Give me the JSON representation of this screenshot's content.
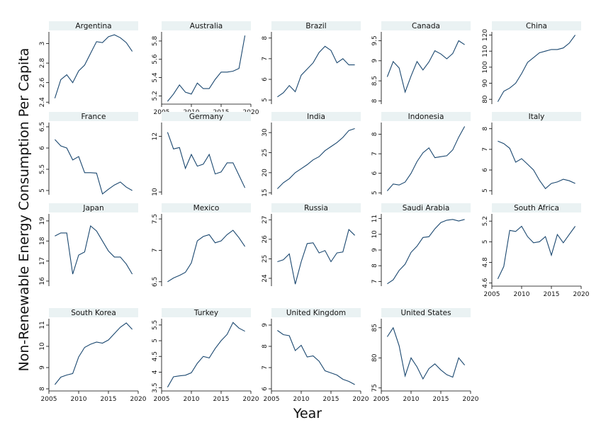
{
  "chart_data": {
    "type": "line",
    "xlabel": "Year",
    "ylabel": "Non-Renewable Energy Consumption Per Capita",
    "x": [
      2006,
      2007,
      2008,
      2009,
      2010,
      2011,
      2012,
      2013,
      2014,
      2015,
      2016,
      2017,
      2018,
      2019
    ],
    "x_ticks": [
      2005,
      2010,
      2015,
      2020
    ],
    "panels": [
      {
        "name": "Argentina",
        "yticks": [
          2.4,
          2.6,
          2.8,
          3
        ],
        "ytick_labels": [
          "2.4",
          "2.6",
          "2.8",
          "3"
        ],
        "ylim": [
          2.38,
          3.12
        ],
        "values": [
          2.44,
          2.63,
          2.68,
          2.6,
          2.72,
          2.78,
          2.9,
          3.02,
          3.01,
          3.07,
          3.09,
          3.06,
          3.01,
          2.92
        ]
      },
      {
        "name": "Australia",
        "yticks": [
          5.2,
          5.4,
          5.6,
          5.8
        ],
        "ytick_labels": [
          "5.2",
          "5.4",
          "5.6",
          "5.8"
        ],
        "ylim": [
          5.11,
          5.9
        ],
        "values": [
          5.14,
          5.22,
          5.32,
          5.24,
          5.22,
          5.34,
          5.28,
          5.28,
          5.38,
          5.46,
          5.46,
          5.47,
          5.5,
          5.86
        ]
      },
      {
        "name": "Brazil",
        "yticks": [
          5,
          6,
          7,
          8
        ],
        "ytick_labels": [
          "5",
          "6",
          "7",
          "8"
        ],
        "ylim": [
          4.8,
          8.3
        ],
        "values": [
          5.15,
          5.35,
          5.7,
          5.4,
          6.2,
          6.5,
          6.8,
          7.3,
          7.6,
          7.4,
          6.8,
          7.0,
          6.7,
          6.7
        ]
      },
      {
        "name": "Canada",
        "yticks": [
          8,
          8.5,
          9,
          9.5
        ],
        "ytick_labels": [
          "8",
          "8.5",
          "9",
          "9.5"
        ],
        "ylim": [
          7.92,
          9.72
        ],
        "values": [
          8.6,
          8.98,
          8.82,
          8.22,
          8.62,
          8.98,
          8.77,
          8.97,
          9.25,
          9.17,
          9.05,
          9.18,
          9.5,
          9.4
        ]
      },
      {
        "name": "China",
        "yticks": [
          80,
          90,
          100,
          110,
          120
        ],
        "ytick_labels": [
          "80",
          "90",
          "100",
          "110",
          "120"
        ],
        "ylim": [
          77,
          122
        ],
        "values": [
          78.5,
          85,
          87,
          90,
          96,
          103,
          106,
          109,
          110,
          111,
          111,
          112,
          115,
          120
        ]
      },
      {
        "name": "France",
        "yticks": [
          5,
          5.5,
          6,
          6.5
        ],
        "ytick_labels": [
          "5",
          "5.5",
          "6",
          "6.5"
        ],
        "ylim": [
          4.9,
          6.6
        ],
        "values": [
          6.2,
          6.05,
          6.0,
          5.72,
          5.8,
          5.42,
          5.42,
          5.41,
          4.92,
          5.03,
          5.13,
          5.2,
          5.08,
          5.0
        ]
      },
      {
        "name": "Germany",
        "yticks": [
          10,
          12
        ],
        "ytick_labels": [
          "10",
          "12"
        ],
        "ylim": [
          9.9,
          12.5
        ],
        "values": [
          12.15,
          11.55,
          11.6,
          10.85,
          11.35,
          10.93,
          11.0,
          11.35,
          10.65,
          10.72,
          11.05,
          11.05,
          10.6,
          10.15
        ]
      },
      {
        "name": "India",
        "yticks": [
          15,
          20,
          25,
          30
        ],
        "ytick_labels": [
          "15",
          "20",
          "25",
          "30"
        ],
        "ylim": [
          14.5,
          32.5
        ],
        "values": [
          16,
          17.5,
          18.5,
          20,
          21,
          22,
          23.2,
          24,
          25.5,
          26.5,
          27.5,
          28.8,
          30.5,
          31
        ]
      },
      {
        "name": "Indonesia",
        "yticks": [
          5,
          6,
          7,
          8
        ],
        "ytick_labels": [
          "5",
          "6",
          "7",
          "8"
        ],
        "ylim": [
          4.9,
          8.6
        ],
        "values": [
          5.1,
          5.45,
          5.4,
          5.55,
          6.0,
          6.6,
          7.05,
          7.3,
          6.8,
          6.85,
          6.9,
          7.2,
          7.85,
          8.4
        ]
      },
      {
        "name": "Italy",
        "yticks": [
          5,
          6,
          7,
          8
        ],
        "ytick_labels": [
          "5",
          "6",
          "7",
          "8"
        ],
        "ylim": [
          4.8,
          8.3
        ],
        "values": [
          7.4,
          7.28,
          7.05,
          6.38,
          6.55,
          6.28,
          6.0,
          5.5,
          5.1,
          5.35,
          5.42,
          5.55,
          5.48,
          5.35
        ]
      },
      {
        "name": "Japan",
        "yticks": [
          16,
          17,
          18,
          19
        ],
        "ytick_labels": [
          "16",
          "17",
          "18",
          "19"
        ],
        "ylim": [
          15.75,
          19.35
        ],
        "values": [
          18.25,
          18.4,
          18.4,
          16.35,
          17.3,
          17.45,
          18.75,
          18.5,
          18.0,
          17.5,
          17.2,
          17.2,
          16.85,
          16.35
        ]
      },
      {
        "name": "Mexico",
        "yticks": [
          6.5,
          7,
          7.5
        ],
        "ytick_labels": [
          "6.5",
          "7",
          "7.5"
        ],
        "ylim": [
          6.43,
          7.58
        ],
        "values": [
          6.5,
          6.56,
          6.6,
          6.65,
          6.8,
          7.15,
          7.22,
          7.25,
          7.12,
          7.15,
          7.25,
          7.32,
          7.2,
          7.06
        ]
      },
      {
        "name": "Russia",
        "yticks": [
          24,
          25,
          26,
          27
        ],
        "ytick_labels": [
          "24",
          "25",
          "26",
          "27"
        ],
        "ylim": [
          23.6,
          27.3
        ],
        "values": [
          24.85,
          24.95,
          25.25,
          23.7,
          24.85,
          25.78,
          25.82,
          25.3,
          25.42,
          24.85,
          25.3,
          25.35,
          26.5,
          26.2
        ]
      },
      {
        "name": "Saudi Arabia",
        "yticks": [
          7,
          8,
          9,
          10,
          11
        ],
        "ytick_labels": [
          "7",
          "8",
          "9",
          "10",
          "11"
        ],
        "ylim": [
          6.7,
          11.3
        ],
        "values": [
          6.85,
          7.1,
          7.7,
          8.1,
          8.85,
          9.25,
          9.8,
          9.85,
          10.35,
          10.75,
          10.9,
          10.95,
          10.85,
          10.95
        ]
      },
      {
        "name": "South Africa",
        "yticks": [
          4.6,
          4.8,
          5,
          5.2
        ],
        "ytick_labels": [
          "4.6",
          "4.8",
          "5",
          "5.2"
        ],
        "ylim": [
          4.57,
          5.27
        ],
        "values": [
          4.64,
          4.76,
          5.11,
          5.1,
          5.15,
          5.05,
          4.99,
          5.0,
          5.05,
          4.87,
          5.07,
          4.99,
          5.07,
          5.15
        ]
      },
      {
        "name": "South Korea",
        "yticks": [
          8,
          9,
          10,
          11
        ],
        "ytick_labels": [
          "8",
          "9",
          "10",
          "11"
        ],
        "ylim": [
          7.9,
          11.3
        ],
        "values": [
          8.2,
          8.55,
          8.65,
          8.72,
          9.5,
          9.95,
          10.1,
          10.2,
          10.15,
          10.3,
          10.6,
          10.9,
          11.1,
          10.8
        ]
      },
      {
        "name": "Turkey",
        "yticks": [
          3.5,
          4,
          4.5,
          5,
          5.5
        ],
        "ytick_labels": [
          "3.5",
          "4",
          "4.5",
          "5",
          "5.5"
        ],
        "ylim": [
          3.4,
          5.7
        ],
        "values": [
          3.52,
          3.85,
          3.88,
          3.9,
          3.98,
          4.28,
          4.5,
          4.45,
          4.75,
          5.0,
          5.2,
          5.58,
          5.4,
          5.3
        ]
      },
      {
        "name": "United Kingdom",
        "yticks": [
          6,
          7,
          8,
          9
        ],
        "ytick_labels": [
          "6",
          "7",
          "8",
          "9"
        ],
        "ylim": [
          5.9,
          9.3
        ],
        "values": [
          8.75,
          8.55,
          8.5,
          7.8,
          8.05,
          7.5,
          7.55,
          7.3,
          6.85,
          6.75,
          6.65,
          6.45,
          6.35,
          6.2
        ]
      },
      {
        "name": "United States",
        "yticks": [
          75,
          80,
          85
        ],
        "ytick_labels": [
          "75",
          "80",
          "85"
        ],
        "ylim": [
          74.5,
          86.5
        ],
        "values": [
          83.5,
          85.0,
          82.0,
          77.0,
          80.0,
          78.5,
          76.5,
          78.2,
          79.0,
          78.0,
          77.2,
          76.8,
          80.0,
          78.8
        ]
      }
    ]
  }
}
